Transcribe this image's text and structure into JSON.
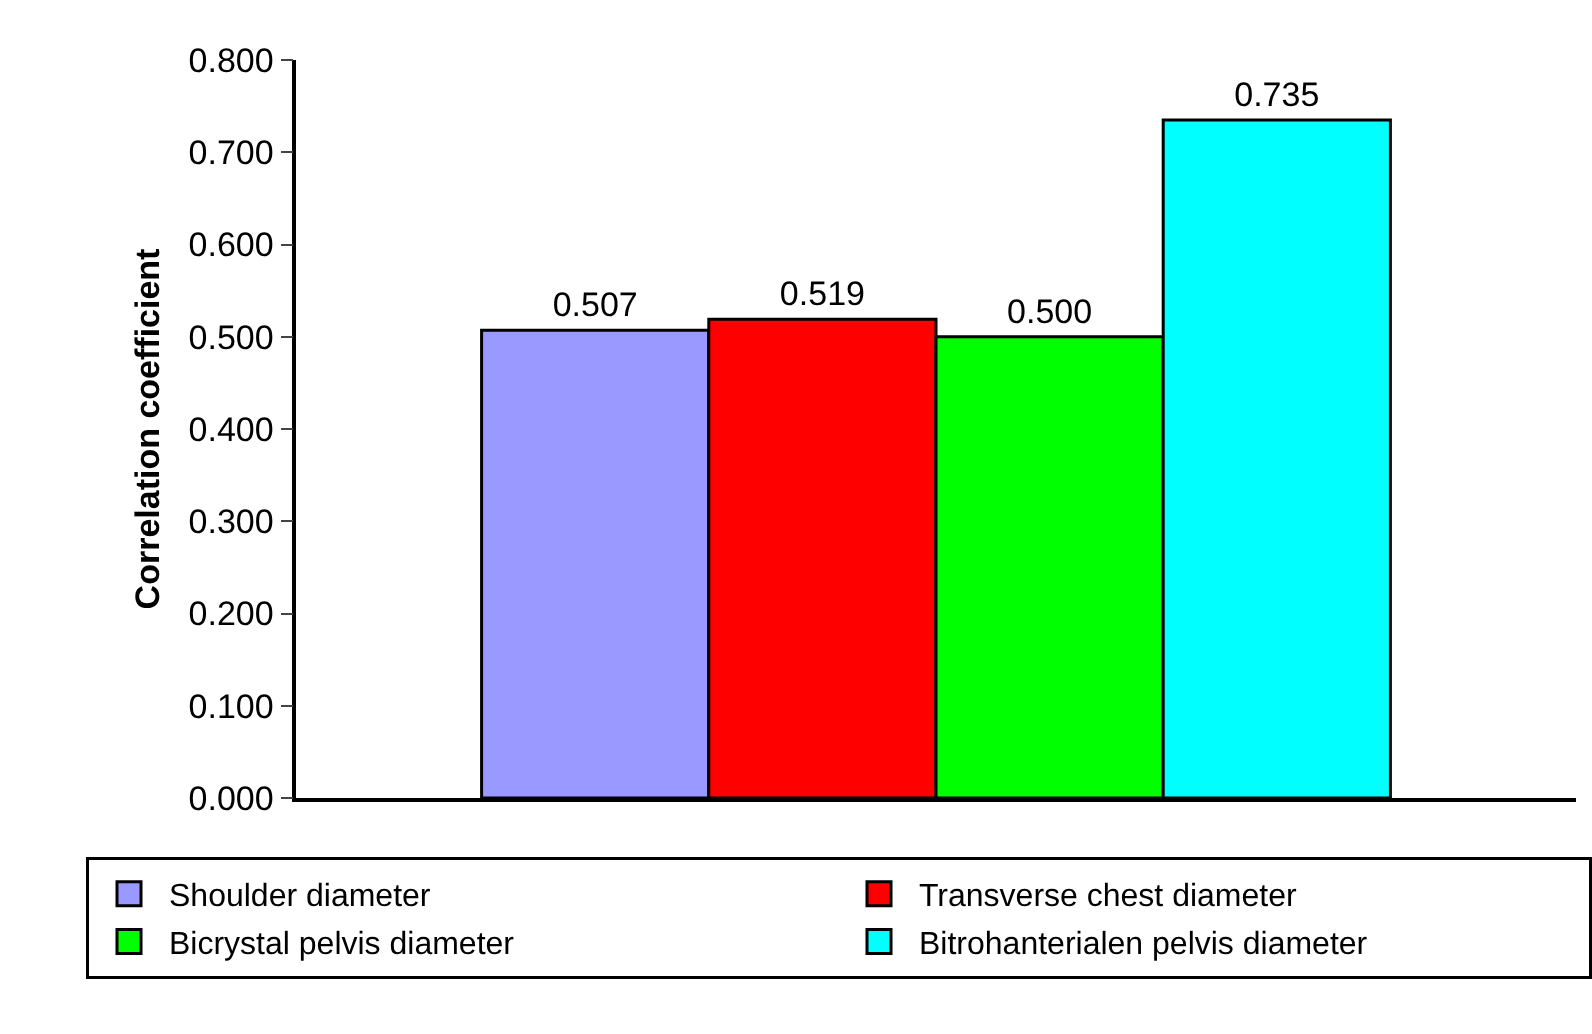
{
  "chart_data": {
    "type": "bar",
    "ylabel": "Correlation coefficient",
    "categories": [
      null
    ],
    "series": [
      {
        "name": "Shoulder diameter",
        "color": "#9999ff",
        "values": [
          0.507
        ],
        "value_labels": [
          "0.507"
        ]
      },
      {
        "name": "Transverse chest diameter",
        "color": "#ff0000",
        "values": [
          0.519
        ],
        "value_labels": [
          "0.519"
        ]
      },
      {
        "name": "Bicrystal pelvis diameter",
        "color": "#00ff00",
        "values": [
          0.5
        ],
        "value_labels": [
          "0.500"
        ]
      },
      {
        "name": "Bitrohanterialen pelvis diameter",
        "color": "#00ffff",
        "values": [
          0.735
        ],
        "value_labels": [
          "0.735"
        ]
      }
    ],
    "ylim": [
      0,
      0.8
    ],
    "yticks": [
      {
        "value": 0,
        "label": "0.000"
      },
      {
        "value": 0.1,
        "label": "0.100"
      },
      {
        "value": 0.2,
        "label": "0.200"
      },
      {
        "value": 0.3,
        "label": "0.300"
      },
      {
        "value": 0.4,
        "label": "0.400"
      },
      {
        "value": 0.5,
        "label": "0.500"
      },
      {
        "value": 0.6,
        "label": "0.600"
      },
      {
        "value": 0.7,
        "label": "0.700"
      },
      {
        "value": 0.8,
        "label": "0.800"
      }
    ],
    "grid": false,
    "legend": "bottom",
    "tick_labels": "y"
  }
}
